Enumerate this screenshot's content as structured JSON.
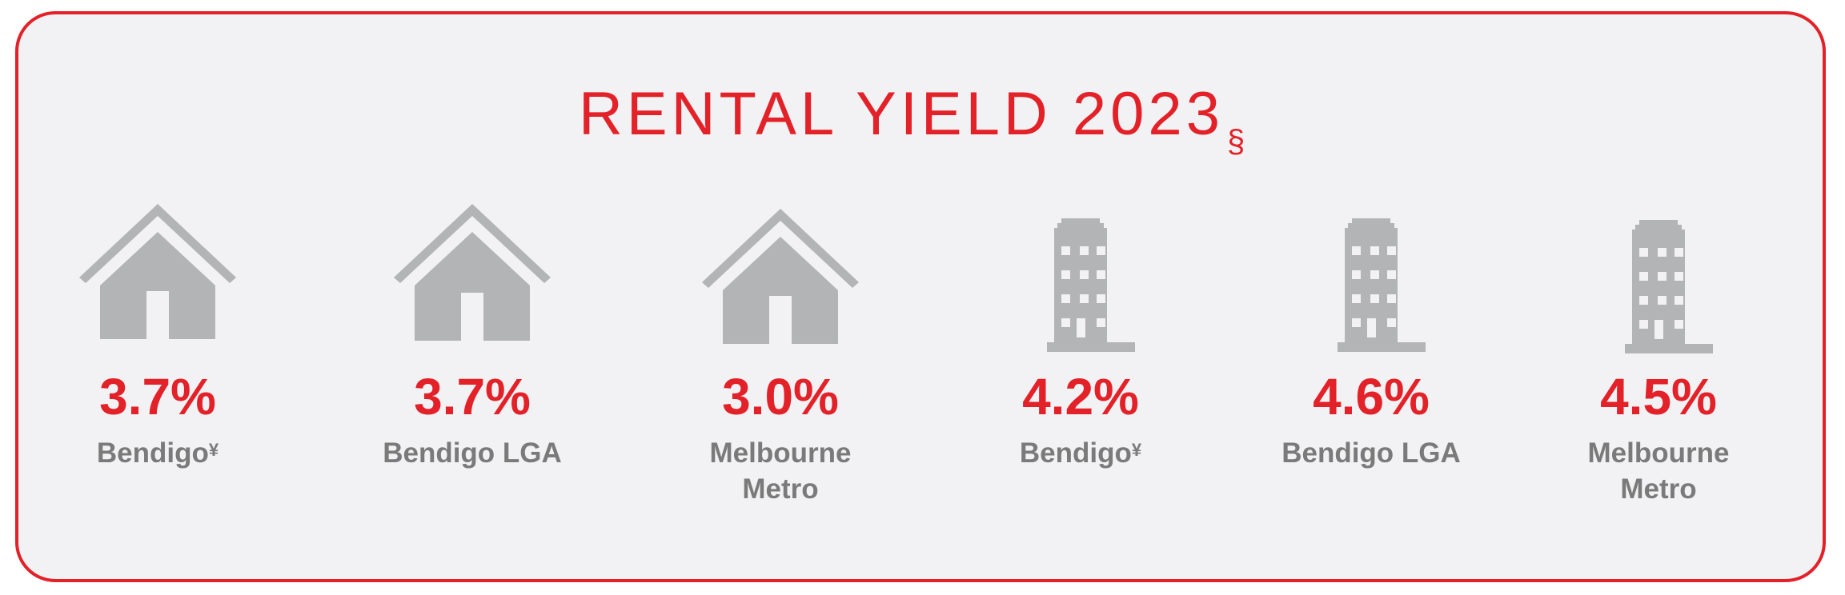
{
  "title": {
    "text": "RENTAL YIELD 2023",
    "marker": "§"
  },
  "colors": {
    "accent": "#e32128",
    "icon": "#b3b4b6",
    "label": "#7a7a7a",
    "background": "#f2f1f3"
  },
  "items": [
    {
      "icon": "house-icon",
      "value": "3.7%",
      "label": "Bendigo",
      "mark": "¥",
      "label_line2": ""
    },
    {
      "icon": "house-icon",
      "value": "3.7%",
      "label": "Bendigo LGA",
      "mark": "",
      "label_line2": ""
    },
    {
      "icon": "house-icon",
      "value": "3.0%",
      "label": "Melbourne",
      "mark": "",
      "label_line2": "Metro"
    },
    {
      "icon": "apartment-building-icon",
      "value": "4.2%",
      "label": "Bendigo",
      "mark": "¥",
      "label_line2": ""
    },
    {
      "icon": "apartment-building-icon",
      "value": "4.6%",
      "label": "Bendigo LGA",
      "mark": "",
      "label_line2": ""
    },
    {
      "icon": "apartment-building-icon",
      "value": "4.5%",
      "label": "Melbourne",
      "mark": "",
      "label_line2": "Metro"
    }
  ]
}
